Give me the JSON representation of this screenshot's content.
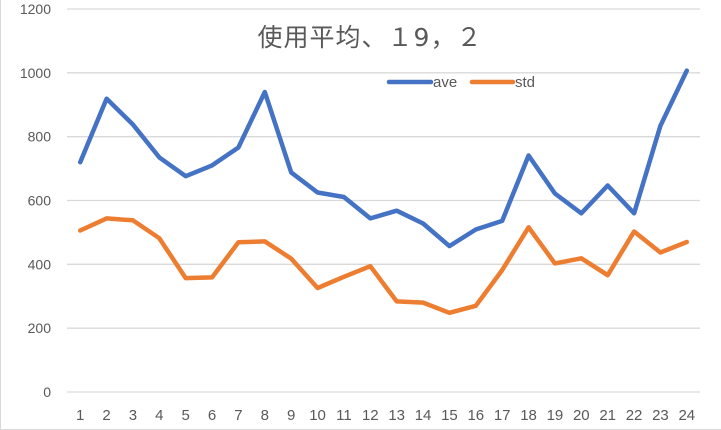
{
  "chart_data": {
    "type": "line",
    "title": "使用平均、１9，２",
    "xlabel": "",
    "ylabel": "",
    "ylim": [
      0,
      1200
    ],
    "yticks": [
      0,
      200,
      400,
      600,
      800,
      1000,
      1200
    ],
    "grid": true,
    "legend_position": "top-center",
    "categories": [
      "1",
      "2",
      "3",
      "4",
      "5",
      "6",
      "7",
      "8",
      "9",
      "10",
      "11",
      "12",
      "13",
      "14",
      "15",
      "16",
      "17",
      "18",
      "19",
      "20",
      "21",
      "22",
      "23",
      "24"
    ],
    "series": [
      {
        "name": "ave",
        "color": "#4472C4",
        "values": [
          720,
          919,
          838,
          735,
          676,
          710,
          766,
          940,
          688,
          625,
          611,
          544,
          568,
          528,
          457,
          509,
          536,
          741,
          622,
          560,
          647,
          560,
          834,
          1007
        ]
      },
      {
        "name": "std",
        "color": "#ED7D31",
        "values": [
          506,
          544,
          538,
          482,
          357,
          359,
          469,
          472,
          418,
          326,
          361,
          394,
          284,
          280,
          248,
          270,
          382,
          516,
          403,
          419,
          366,
          503,
          437,
          470
        ]
      }
    ]
  },
  "colors": {
    "gridline": "#d9d9d9",
    "axis_text": "#595959"
  }
}
